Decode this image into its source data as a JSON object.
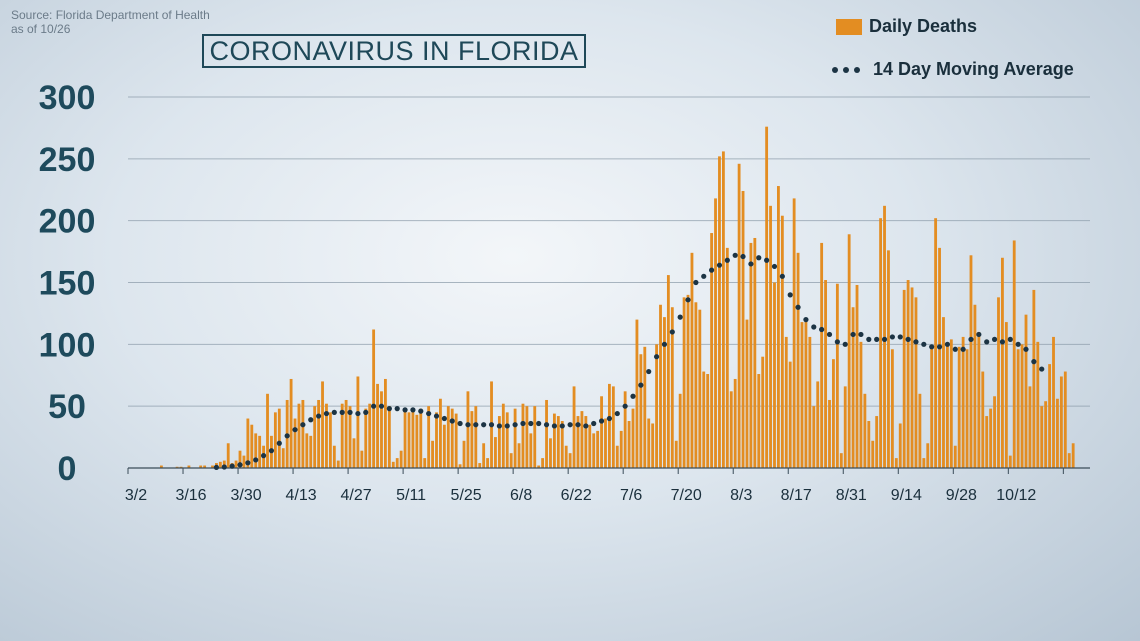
{
  "source": {
    "line1": "Source: Florida Department of Health",
    "line2": "as of 10/26"
  },
  "colors": {
    "bar": "#e38d22",
    "dots": "#1c3444",
    "axis_text": "#1e4a5c",
    "grid": "#8a9aa8"
  },
  "chart_data": {
    "type": "bar",
    "title": "CORONAVIRUS  IN FLORIDA",
    "legend": {
      "bar_label": "Daily Deaths",
      "line_label": "14 Day Moving Average",
      "placement": "top-right"
    },
    "ylim": [
      0,
      300
    ],
    "yticks": [
      "0",
      "50",
      "100",
      "150",
      "200",
      "250",
      "300"
    ],
    "xticks": [
      "3/2",
      "3/16",
      "3/30",
      "4/13",
      "4/27",
      "5/11",
      "5/25",
      "6/8",
      "6/22",
      "7/6",
      "7/20",
      "8/3",
      "8/17",
      "8/31",
      "9/14",
      "9/28",
      "10/12"
    ],
    "grid": true,
    "start_date": "3/2",
    "series": [
      {
        "name": "Daily Deaths",
        "type": "bar",
        "values": [
          0,
          0,
          0,
          0,
          0,
          0,
          0,
          0,
          2,
          0,
          0,
          0,
          1,
          1,
          0,
          2,
          0,
          0,
          2,
          2,
          0,
          2,
          4,
          5,
          6,
          20,
          4,
          6,
          14,
          10,
          40,
          35,
          28,
          26,
          18,
          60,
          26,
          45,
          48,
          16,
          55,
          72,
          40,
          52,
          55,
          28,
          26,
          50,
          55,
          70,
          52,
          45,
          18,
          6,
          52,
          55,
          50,
          24,
          74,
          14,
          48,
          52,
          112,
          68,
          62,
          72,
          50,
          5,
          8,
          14,
          47,
          45,
          48,
          43,
          48,
          8,
          50,
          22,
          45,
          56,
          35,
          50,
          48,
          44,
          3,
          22,
          62,
          46,
          50,
          4,
          20,
          8,
          70,
          25,
          42,
          52,
          45,
          12,
          48,
          20,
          52,
          50,
          28,
          50,
          2,
          8,
          55,
          24,
          44,
          42,
          38,
          18,
          12,
          66,
          42,
          46,
          42,
          35,
          28,
          30,
          58,
          40,
          68,
          66,
          18,
          30,
          62,
          38,
          48,
          120,
          92,
          98,
          40,
          36,
          100,
          132,
          122,
          156,
          130,
          22,
          60,
          138,
          140,
          174,
          134,
          128,
          78,
          76,
          190,
          218,
          252,
          256,
          178,
          62,
          72,
          246,
          224,
          120,
          182,
          186,
          76,
          90,
          276,
          212,
          150,
          228,
          204,
          106,
          86,
          218,
          174,
          118,
          118,
          106,
          50,
          70,
          182,
          152,
          55,
          88,
          149,
          12,
          66,
          189,
          130,
          148,
          102,
          60,
          38,
          22,
          42,
          202,
          212,
          176,
          96,
          8,
          36,
          144,
          152,
          146,
          138,
          60,
          8,
          20,
          98,
          202,
          178,
          122,
          100,
          104,
          18,
          98,
          106,
          96,
          172,
          132,
          110,
          78,
          42,
          48,
          58,
          138,
          170,
          118,
          10,
          184,
          96,
          100,
          124,
          66,
          144,
          102,
          50,
          54,
          84,
          106,
          56,
          74,
          78,
          12,
          20
        ]
      },
      {
        "name": "14 Day Moving Average",
        "type": "dots",
        "values": [
          0.5,
          0.8,
          1.5,
          2.6,
          4.2,
          6.5,
          10,
          14,
          20,
          26,
          31,
          35,
          39,
          42,
          44,
          45,
          45,
          45,
          44,
          45,
          50,
          50,
          48,
          48,
          47,
          47,
          46,
          44,
          42,
          40,
          38,
          36,
          35,
          35,
          35,
          35,
          34,
          34,
          35,
          36,
          36,
          36,
          35,
          34,
          34,
          35,
          35,
          34,
          36,
          38,
          40,
          44,
          50,
          58,
          67,
          78,
          90,
          100,
          110,
          122,
          136,
          150,
          155,
          160,
          164,
          168,
          172,
          171,
          165,
          170,
          168,
          163,
          155,
          140,
          130,
          120,
          114,
          112,
          108,
          102,
          100,
          108,
          108,
          104,
          104,
          104,
          106,
          106,
          104,
          102,
          100,
          98,
          98,
          100,
          96,
          96,
          104,
          108,
          102,
          104,
          102,
          104,
          100,
          96,
          86,
          80
        ]
      }
    ]
  }
}
